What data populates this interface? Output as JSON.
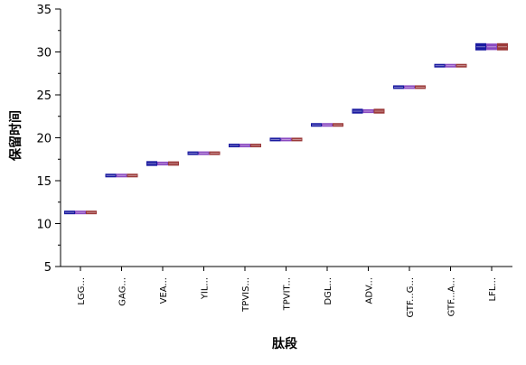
{
  "chart_data": {
    "type": "bar",
    "title": "",
    "xlabel": "肽段",
    "ylabel": "保留时间",
    "ylim": [
      5,
      35
    ],
    "yticks": [
      5,
      10,
      15,
      20,
      25,
      30,
      35
    ],
    "grid": false,
    "legend": "none",
    "categories": [
      "LGG...",
      "GAG...",
      "VEA...",
      "YIL...",
      "TPVIS...",
      "TPVIT...",
      "DGL...",
      "ADV...",
      "GTF...G...",
      "GTF...A...",
      "LFL..."
    ],
    "series": [
      {
        "color": "#1a1aa0",
        "values": [
          11.3,
          15.6,
          17.0,
          18.2,
          19.1,
          19.8,
          21.5,
          23.1,
          25.9,
          28.4,
          30.6
        ]
      },
      {
        "color": "#8a4ac0",
        "values": [
          11.3,
          15.6,
          17.0,
          18.2,
          19.1,
          19.8,
          21.5,
          23.1,
          25.9,
          28.4,
          30.6
        ]
      },
      {
        "color": "#9b3a3a",
        "values": [
          11.3,
          15.6,
          17.0,
          18.2,
          19.1,
          19.8,
          21.5,
          23.1,
          25.9,
          28.4,
          30.6
        ]
      }
    ],
    "series_halfspread": [
      [
        0.12,
        0.12,
        0.12
      ],
      [
        0.12,
        0.12,
        0.12
      ],
      [
        0.28,
        0.22,
        0.25
      ],
      [
        0.15,
        0.14,
        0.15
      ],
      [
        0.16,
        0.15,
        0.16
      ],
      [
        0.1,
        0.1,
        0.1
      ],
      [
        0.15,
        0.15,
        0.15
      ],
      [
        0.28,
        0.22,
        0.28
      ],
      [
        0.15,
        0.15,
        0.15
      ],
      [
        0.2,
        0.18,
        0.2
      ],
      [
        0.42,
        0.38,
        0.42
      ]
    ]
  }
}
